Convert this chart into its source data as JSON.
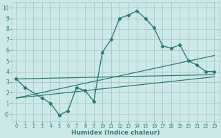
{
  "xlabel": "Humidex (Indice chaleur)",
  "bg_color": "#cce8e8",
  "grid_color": "#aacccc",
  "line_color": "#2a7a70",
  "xlim": [
    -0.5,
    23.5
  ],
  "ylim": [
    -0.7,
    10.5
  ],
  "yticks": [
    0,
    1,
    2,
    3,
    4,
    5,
    6,
    7,
    8,
    9,
    10
  ],
  "ytick_labels": [
    "",
    "1",
    "2",
    "3",
    "4",
    "5",
    "6",
    "7",
    "8",
    "9",
    "10"
  ],
  "xticks": [
    0,
    1,
    2,
    3,
    4,
    5,
    6,
    7,
    8,
    9,
    10,
    11,
    12,
    13,
    14,
    15,
    16,
    17,
    18,
    19,
    20,
    21,
    22,
    23
  ],
  "curve1_x": [
    0,
    1,
    3,
    4,
    5,
    6,
    7,
    8,
    9,
    10,
    11,
    12,
    13,
    14,
    15,
    16,
    17,
    18,
    19,
    20,
    21,
    22,
    23
  ],
  "curve1_y": [
    3.3,
    2.5,
    1.5,
    1.0,
    -0.1,
    0.3,
    2.5,
    2.2,
    1.2,
    5.8,
    7.0,
    9.0,
    9.3,
    9.7,
    9.0,
    8.1,
    6.4,
    6.2,
    6.5,
    5.0,
    4.6,
    4.0,
    4.0
  ],
  "line2_x": [
    0,
    23
  ],
  "line2_y": [
    1.5,
    3.5
  ],
  "line3_x": [
    0,
    23
  ],
  "line3_y": [
    3.3,
    3.7
  ],
  "line4_x": [
    0,
    23
  ],
  "line4_y": [
    1.5,
    5.5
  ],
  "neg0_y": -0.1
}
